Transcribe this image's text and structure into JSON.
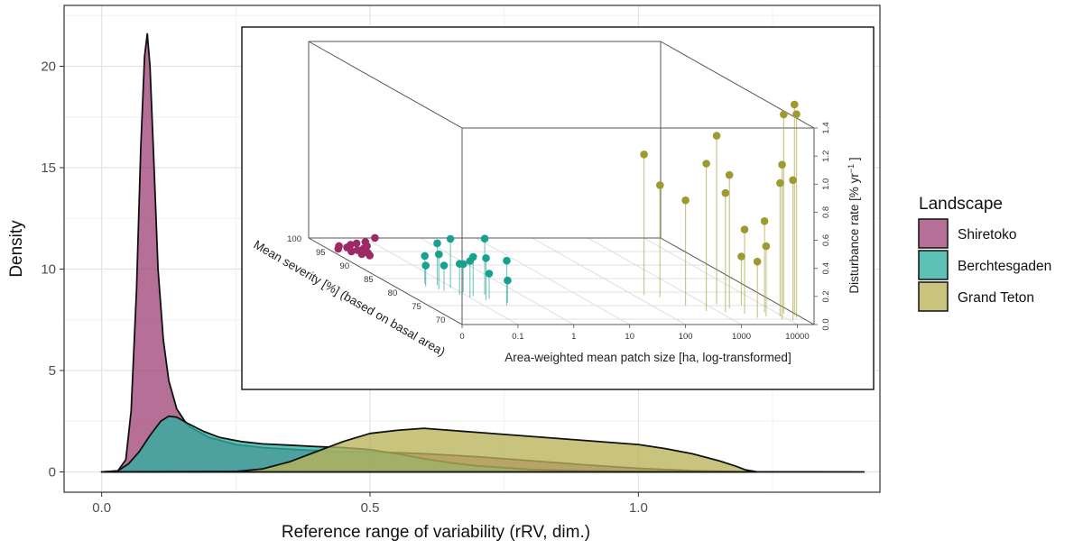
{
  "chart_data": [
    {
      "type": "area",
      "title": "",
      "xlabel": "Reference range of variability (rRV, dim.)",
      "ylabel": "Density",
      "xlim": [
        -0.07,
        1.45
      ],
      "ylim": [
        -1.0,
        23.0
      ],
      "x_ticks": [
        0.0,
        0.5,
        1.0
      ],
      "x_tick_labels": [
        "0.0",
        "0.5",
        "1.0"
      ],
      "y_ticks": [
        0,
        5,
        10,
        15,
        20
      ],
      "y_tick_labels": [
        "0",
        "5",
        "10",
        "15",
        "20"
      ],
      "grid": true,
      "legend": {
        "title": "Landscape",
        "position": "right",
        "entries": [
          "Shiretoko",
          "Berchtesgaden",
          "Grand Teton"
        ]
      },
      "series": [
        {
          "name": "Shiretoko",
          "color": "#a1477a",
          "points": [
            [
              0.0,
              0
            ],
            [
              0.03,
              0.05
            ],
            [
              0.045,
              0.6
            ],
            [
              0.055,
              3.0
            ],
            [
              0.065,
              9.0
            ],
            [
              0.073,
              16.0
            ],
            [
              0.08,
              20.5
            ],
            [
              0.085,
              21.6
            ],
            [
              0.09,
              20.0
            ],
            [
              0.097,
              15.5
            ],
            [
              0.105,
              10.0
            ],
            [
              0.115,
              6.5
            ],
            [
              0.125,
              4.5
            ],
            [
              0.14,
              3.1
            ],
            [
              0.16,
              2.3
            ],
            [
              0.2,
              1.7
            ],
            [
              0.25,
              1.35
            ],
            [
              0.3,
              1.2
            ],
            [
              0.35,
              1.12
            ],
            [
              0.4,
              1.05
            ],
            [
              0.45,
              1.0
            ],
            [
              0.5,
              0.98
            ],
            [
              0.55,
              0.95
            ],
            [
              0.6,
              0.9
            ],
            [
              0.7,
              0.75
            ],
            [
              0.8,
              0.55
            ],
            [
              0.9,
              0.35
            ],
            [
              1.0,
              0.18
            ],
            [
              1.1,
              0.06
            ],
            [
              1.2,
              0.01
            ],
            [
              1.22,
              0
            ]
          ]
        },
        {
          "name": "Berchtesgaden",
          "color": "#2fb0a0",
          "points": [
            [
              0.0,
              0
            ],
            [
              0.03,
              0.05
            ],
            [
              0.05,
              0.4
            ],
            [
              0.07,
              1.0
            ],
            [
              0.09,
              1.8
            ],
            [
              0.11,
              2.5
            ],
            [
              0.125,
              2.75
            ],
            [
              0.14,
              2.7
            ],
            [
              0.16,
              2.4
            ],
            [
              0.19,
              2.0
            ],
            [
              0.22,
              1.7
            ],
            [
              0.26,
              1.5
            ],
            [
              0.3,
              1.38
            ],
            [
              0.35,
              1.32
            ],
            [
              0.4,
              1.25
            ],
            [
              0.45,
              1.2
            ],
            [
              0.5,
              1.1
            ],
            [
              0.55,
              0.9
            ],
            [
              0.6,
              0.65
            ],
            [
              0.65,
              0.45
            ],
            [
              0.7,
              0.3
            ],
            [
              0.8,
              0.12
            ],
            [
              0.9,
              0.05
            ],
            [
              1.0,
              0.02
            ],
            [
              1.1,
              0.005
            ],
            [
              1.2,
              0
            ]
          ]
        },
        {
          "name": "Grand Teton",
          "color": "#b9b45a",
          "points": [
            [
              0.0,
              0
            ],
            [
              0.25,
              0.02
            ],
            [
              0.3,
              0.15
            ],
            [
              0.35,
              0.5
            ],
            [
              0.4,
              1.0
            ],
            [
              0.45,
              1.5
            ],
            [
              0.5,
              1.9
            ],
            [
              0.55,
              2.05
            ],
            [
              0.6,
              2.15
            ],
            [
              0.65,
              2.05
            ],
            [
              0.7,
              1.95
            ],
            [
              0.75,
              1.85
            ],
            [
              0.8,
              1.75
            ],
            [
              0.85,
              1.65
            ],
            [
              0.9,
              1.55
            ],
            [
              0.95,
              1.45
            ],
            [
              1.0,
              1.35
            ],
            [
              1.05,
              1.15
            ],
            [
              1.1,
              0.9
            ],
            [
              1.15,
              0.55
            ],
            [
              1.18,
              0.3
            ],
            [
              1.2,
              0.1
            ],
            [
              1.22,
              0.01
            ],
            [
              1.42,
              0
            ]
          ]
        }
      ]
    },
    {
      "type": "scatter",
      "title": "",
      "xlabel": "Area-weighted mean patch size [ha, log-transformed]",
      "ylabel": "Mean severity [%] (based on basal area)",
      "zlabel_main": "Disturbance rate [% yr",
      "zlabel_sup": "−1",
      "zlabel_end": " ]",
      "x_tick_labels": [
        "0",
        "0.1",
        "1",
        "10",
        "100",
        "1000",
        "10000"
      ],
      "y_tick_labels": [
        "100",
        "95",
        "90",
        "85",
        "80",
        "75",
        "70"
      ],
      "z_tick_labels": [
        "0.0",
        "0.2",
        "0.4",
        "0.6",
        "0.8",
        "1.0",
        "1.2",
        "1.4"
      ],
      "xlim_log10": [
        -2,
        4.3
      ],
      "ylim": [
        68,
        100
      ],
      "zlim": [
        0,
        1.4
      ],
      "series": [
        {
          "name": "Shiretoko",
          "color": "#9c2a66",
          "points": [
            [
              -1.9,
              95,
              0.02
            ],
            [
              -1.8,
              96,
              0.02
            ],
            [
              -1.75,
              94,
              0.02
            ],
            [
              -1.7,
              95.5,
              0.02
            ],
            [
              -1.65,
              93,
              0.02
            ],
            [
              -1.6,
              94.5,
              0.02
            ],
            [
              -1.55,
              92.5,
              0.02
            ],
            [
              -1.5,
              93.5,
              0.02
            ],
            [
              -1.55,
              96.5,
              0.02
            ],
            [
              -1.45,
              95,
              0.02
            ],
            [
              -1.4,
              97,
              0.02
            ],
            [
              -1.3,
              96,
              0.02
            ],
            [
              -1.2,
              97.5,
              0.02
            ],
            [
              -0.9,
              99,
              0.02
            ]
          ]
        },
        {
          "name": "Berchtesgaden",
          "color": "#16a190",
          "points": [
            [
              -1.45,
              82,
              0.15
            ],
            [
              -1.38,
              83,
              0.2
            ],
            [
              -1.3,
              81,
              0.25
            ],
            [
              -1.25,
              80.5,
              0.18
            ],
            [
              -1.2,
              82.5,
              0.3
            ],
            [
              -1.1,
              79,
              0.22
            ],
            [
              -1.05,
              81.5,
              0.35
            ],
            [
              -1.0,
              78,
              0.26
            ],
            [
              -0.95,
              80,
              0.2
            ],
            [
              -0.9,
              78.5,
              0.28
            ],
            [
              -0.8,
              77,
              0.3
            ],
            [
              -0.7,
              77.5,
              0.18
            ],
            [
              -0.65,
              79,
              0.4
            ],
            [
              -0.6,
              75,
              0.32
            ],
            [
              -0.5,
              76,
              0.16
            ]
          ]
        },
        {
          "name": "Grand Teton",
          "color": "#9e9a30",
          "points": [
            [
              2.2,
              79,
              1.0
            ],
            [
              2.4,
              78,
              0.8
            ],
            [
              2.6,
              75,
              0.75
            ],
            [
              2.8,
              73,
              1.05
            ],
            [
              3.2,
              75.5,
              1.2
            ],
            [
              3.1,
              72.5,
              0.85
            ],
            [
              3.3,
              74,
              0.95
            ],
            [
              3.4,
              72,
              0.6
            ],
            [
              3.5,
              70.5,
              0.4
            ],
            [
              3.6,
              75,
              0.35
            ],
            [
              3.7,
              71,
              0.5
            ],
            [
              3.8,
              72.5,
              0.65
            ],
            [
              3.9,
              70,
              1.1
            ],
            [
              3.95,
              71,
              0.95
            ],
            [
              4.05,
              69.5,
              1.0
            ],
            [
              4.1,
              72,
              1.42
            ],
            [
              4.2,
              70.5,
              1.45
            ],
            [
              4.25,
              71.5,
              1.5
            ]
          ]
        }
      ]
    }
  ]
}
